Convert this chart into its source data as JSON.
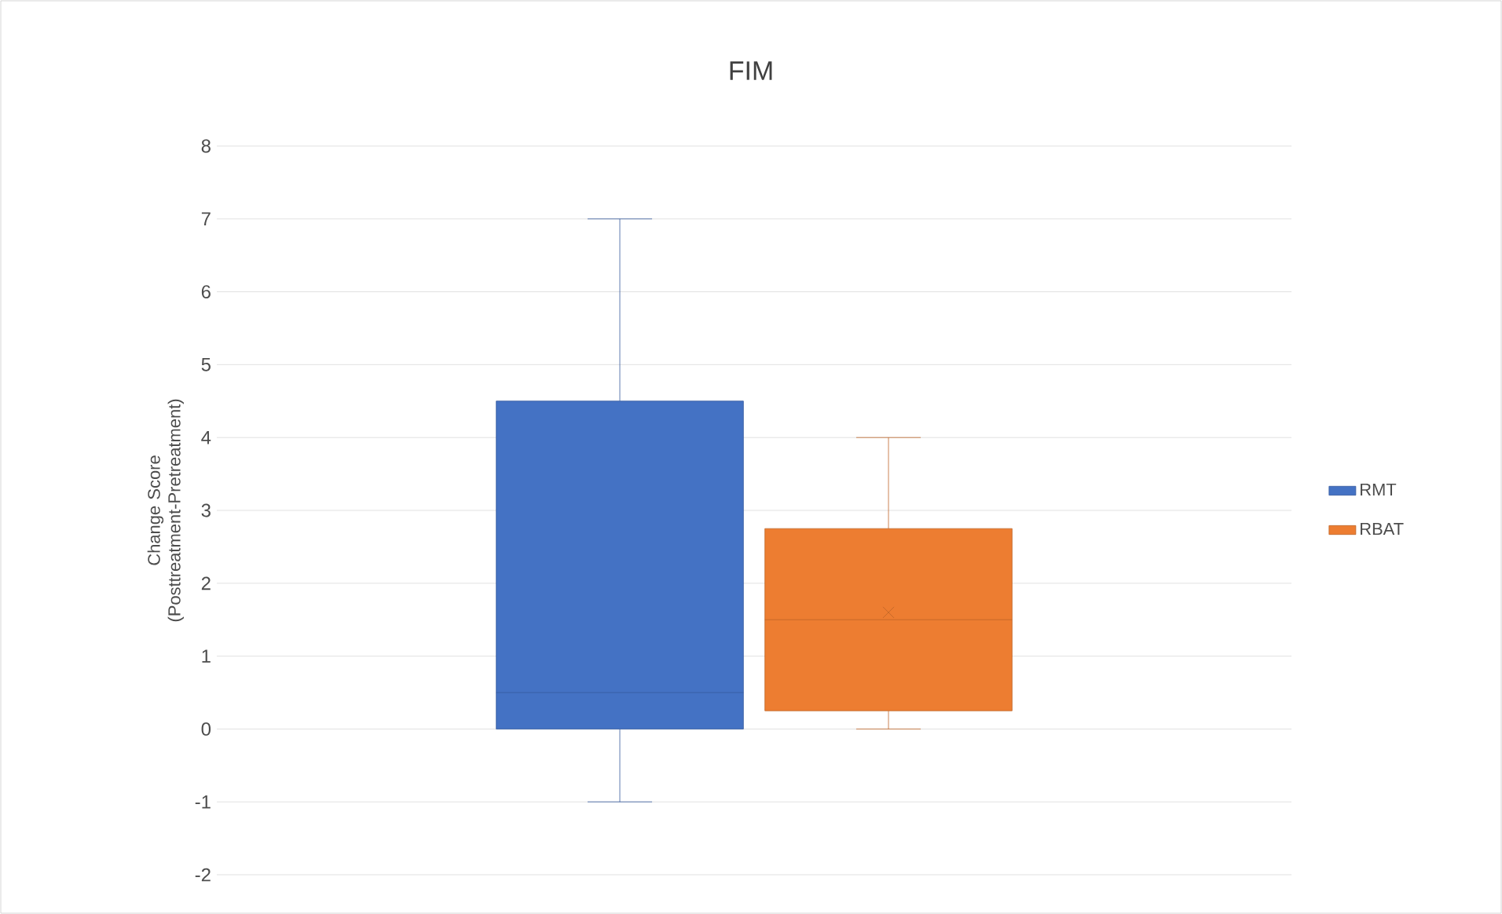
{
  "chart_data": {
    "type": "box",
    "title": "FIM",
    "ylabel": "Change Score (Posttreatment-Pretreatment)",
    "categories": [
      null
    ],
    "ylim": [
      -2,
      8
    ],
    "yticks": [
      -2,
      -1,
      0,
      1,
      2,
      3,
      4,
      5,
      6,
      7,
      8
    ],
    "grid": "y",
    "legend": "right",
    "series": [
      {
        "name": "RMT",
        "color": "#4472c4",
        "boxes": [
          {
            "low": -1,
            "q1": 0,
            "median": 0.5,
            "q3": 4.5,
            "high": 7
          }
        ]
      },
      {
        "name": "RBAT",
        "color": "#ed7d31",
        "boxes": [
          {
            "low": 0,
            "q1": 0.25,
            "median": 1.5,
            "q3": 2.75,
            "high": 4,
            "mean": 1.6
          }
        ]
      }
    ]
  }
}
